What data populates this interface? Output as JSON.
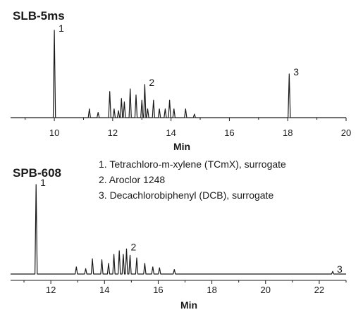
{
  "chart_data": [
    {
      "type": "line",
      "title": "SLB-5ms",
      "xlabel": "Min",
      "xlim": [
        8.5,
        20
      ],
      "ticks": [
        "10",
        "12",
        "14",
        "16",
        "18",
        "20"
      ],
      "peaks": [
        {
          "x": 10.0,
          "h": 1.0,
          "label": "1"
        },
        {
          "x": 11.2,
          "h": 0.1
        },
        {
          "x": 11.5,
          "h": 0.06
        },
        {
          "x": 11.9,
          "h": 0.3
        },
        {
          "x": 12.05,
          "h": 0.1
        },
        {
          "x": 12.2,
          "h": 0.08
        },
        {
          "x": 12.3,
          "h": 0.22
        },
        {
          "x": 12.4,
          "h": 0.18
        },
        {
          "x": 12.6,
          "h": 0.33
        },
        {
          "x": 12.8,
          "h": 0.26
        },
        {
          "x": 13.0,
          "h": 0.2
        },
        {
          "x": 13.1,
          "h": 0.38,
          "label": "2"
        },
        {
          "x": 13.2,
          "h": 0.1
        },
        {
          "x": 13.4,
          "h": 0.2
        },
        {
          "x": 13.6,
          "h": 0.1
        },
        {
          "x": 13.8,
          "h": 0.1
        },
        {
          "x": 13.95,
          "h": 0.2
        },
        {
          "x": 14.1,
          "h": 0.1
        },
        {
          "x": 14.5,
          "h": 0.1
        },
        {
          "x": 14.8,
          "h": 0.04
        },
        {
          "x": 18.05,
          "h": 0.5,
          "label": "3"
        }
      ]
    },
    {
      "type": "line",
      "title": "SPB-608",
      "xlabel": "Min",
      "xlim": [
        10.5,
        23
      ],
      "ticks": [
        "12",
        "14",
        "16",
        "18",
        "20",
        "22"
      ],
      "peaks": [
        {
          "x": 11.45,
          "h": 1.0,
          "label": "1"
        },
        {
          "x": 12.95,
          "h": 0.08
        },
        {
          "x": 13.3,
          "h": 0.06
        },
        {
          "x": 13.55,
          "h": 0.17
        },
        {
          "x": 13.9,
          "h": 0.16
        },
        {
          "x": 14.15,
          "h": 0.12
        },
        {
          "x": 14.35,
          "h": 0.22
        },
        {
          "x": 14.55,
          "h": 0.26
        },
        {
          "x": 14.7,
          "h": 0.22
        },
        {
          "x": 14.82,
          "h": 0.28,
          "label": "2"
        },
        {
          "x": 14.95,
          "h": 0.21
        },
        {
          "x": 15.2,
          "h": 0.18
        },
        {
          "x": 15.5,
          "h": 0.12
        },
        {
          "x": 15.8,
          "h": 0.08
        },
        {
          "x": 16.05,
          "h": 0.07
        },
        {
          "x": 16.6,
          "h": 0.05
        },
        {
          "x": 22.5,
          "h": 0.03,
          "label": "3"
        }
      ]
    }
  ],
  "legend": {
    "items": [
      "1. Tetrachloro-m-xylene (TCmX), surrogate",
      "2. Aroclor 1248",
      "3. Decachlorobiphenyl (DCB), surrogate"
    ]
  }
}
